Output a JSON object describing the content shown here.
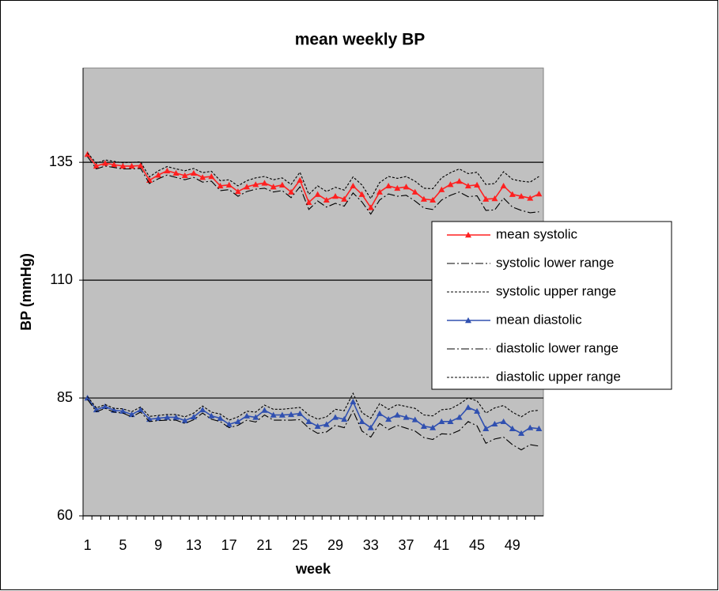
{
  "chart_data": {
    "type": "line",
    "title": "mean weekly BP",
    "xlabel": "week",
    "ylabel": "BP (mmHg)",
    "categories": [
      "1",
      null,
      null,
      null,
      "5",
      null,
      null,
      null,
      "9",
      null,
      null,
      null,
      "13",
      null,
      null,
      null,
      "17",
      null,
      null,
      null,
      "21",
      null,
      null,
      null,
      "25",
      null,
      null,
      null,
      "29",
      null,
      null,
      null,
      "33",
      null,
      null,
      null,
      "37",
      null,
      null,
      null,
      "41",
      null,
      null,
      null,
      "45",
      null,
      null,
      null,
      "49",
      null,
      null,
      null
    ],
    "ylim": [
      60,
      155
    ],
    "yticks": [
      60,
      85,
      110,
      135
    ],
    "grid": true,
    "legend": "right",
    "series": [
      {
        "name": "mean systolic",
        "color": "#ff2020",
        "dash": "solid",
        "marker": "triangle",
        "values": [
          136.7,
          134.2,
          134.8,
          134.5,
          134.2,
          134.2,
          134.3,
          131.2,
          132.3,
          133.2,
          132.7,
          132.2,
          132.7,
          131.8,
          132.0,
          130.0,
          130.2,
          128.8,
          129.8,
          130.3,
          130.6,
          129.8,
          130.2,
          128.7,
          131.2,
          126.5,
          128.2,
          127.0,
          127.8,
          127.2,
          130.0,
          128.2,
          125.4,
          128.7,
          130.0,
          129.5,
          129.8,
          128.7,
          127.2,
          127.0,
          129.2,
          130.3,
          131.0,
          130.0,
          130.2,
          127.2,
          127.3,
          130.0,
          128.2,
          127.8,
          127.4,
          128.3
        ]
      },
      {
        "name": "systolic lower range",
        "color": "#000000",
        "dash": "dashdot",
        "values": [
          136.2,
          133.6,
          134.2,
          133.9,
          133.6,
          133.6,
          133.7,
          130.5,
          131.5,
          132.3,
          131.8,
          131.3,
          131.8,
          130.8,
          131.0,
          129.0,
          129.2,
          127.8,
          128.8,
          129.3,
          129.5,
          128.7,
          129.0,
          127.5,
          129.8,
          125.0,
          126.8,
          125.5,
          126.3,
          125.7,
          128.5,
          126.6,
          124.0,
          127.0,
          128.3,
          127.8,
          128.0,
          126.8,
          125.3,
          125.0,
          127.0,
          128.0,
          128.7,
          127.7,
          127.9,
          124.8,
          124.9,
          127.4,
          125.5,
          124.8,
          124.3,
          124.5
        ]
      },
      {
        "name": "systolic upper range",
        "color": "#000000",
        "dash": "dot",
        "values": [
          137.0,
          134.8,
          135.5,
          135.2,
          134.9,
          135.0,
          135.1,
          131.9,
          133.2,
          134.1,
          133.6,
          133.2,
          133.7,
          132.8,
          133.1,
          131.1,
          131.3,
          130.0,
          131.1,
          131.7,
          132.0,
          131.3,
          131.7,
          130.3,
          132.9,
          128.2,
          130.0,
          128.8,
          129.7,
          129.1,
          131.9,
          130.2,
          127.3,
          130.7,
          132.0,
          131.6,
          132.0,
          131.0,
          129.5,
          129.4,
          131.7,
          132.8,
          133.6,
          132.6,
          132.9,
          130.3,
          130.5,
          133.0,
          131.4,
          131.0,
          130.8,
          132.0
        ]
      },
      {
        "name": "mean diastolic",
        "color": "#3050b0",
        "dash": "solid",
        "marker": "triangle",
        "values": [
          85.0,
          82.5,
          83.2,
          82.4,
          82.2,
          81.5,
          82.5,
          80.5,
          80.7,
          80.9,
          80.9,
          80.2,
          81.0,
          82.5,
          81.2,
          80.7,
          79.4,
          80.0,
          81.2,
          80.9,
          82.4,
          81.4,
          81.4,
          81.5,
          81.7,
          80.0,
          79.0,
          79.4,
          80.9,
          80.5,
          84.2,
          80.0,
          78.7,
          81.7,
          80.5,
          81.4,
          80.9,
          80.4,
          79.0,
          78.7,
          80.0,
          80.0,
          80.9,
          83.0,
          82.2,
          78.5,
          79.5,
          80.0,
          78.5,
          77.5,
          78.7,
          78.5
        ]
      },
      {
        "name": "diastolic lower range",
        "color": "#000000",
        "dash": "dashdot",
        "values": [
          84.7,
          82.1,
          82.8,
          82.0,
          81.8,
          81.0,
          82.0,
          80.0,
          80.2,
          80.3,
          80.3,
          79.6,
          80.4,
          81.8,
          80.5,
          80.0,
          78.7,
          79.2,
          80.3,
          79.9,
          81.4,
          80.3,
          80.3,
          80.3,
          80.4,
          78.6,
          77.5,
          77.8,
          79.2,
          78.7,
          82.3,
          78.0,
          76.7,
          79.6,
          78.3,
          79.2,
          78.6,
          78.0,
          76.6,
          76.2,
          77.4,
          77.3,
          78.1,
          80.0,
          79.1,
          75.4,
          76.3,
          76.7,
          75.1,
          74.0,
          75.1,
          74.8
        ]
      },
      {
        "name": "diastolic upper range",
        "color": "#000000",
        "dash": "dot",
        "values": [
          85.3,
          82.9,
          83.6,
          82.8,
          82.7,
          82.1,
          83.1,
          81.1,
          81.3,
          81.5,
          81.5,
          81.0,
          81.8,
          83.3,
          82.0,
          81.6,
          80.3,
          81.0,
          82.2,
          82.0,
          83.5,
          82.6,
          82.6,
          82.8,
          83.0,
          81.4,
          80.5,
          81.0,
          82.6,
          82.3,
          86.0,
          81.9,
          80.7,
          83.8,
          82.6,
          83.6,
          83.2,
          82.8,
          81.4,
          81.2,
          82.5,
          82.7,
          83.7,
          85.0,
          84.4,
          81.8,
          82.9,
          83.4,
          82.0,
          81.0,
          82.2,
          82.4
        ]
      }
    ]
  }
}
